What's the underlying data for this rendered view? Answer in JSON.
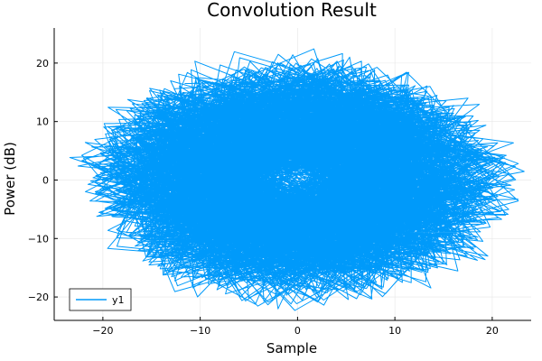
{
  "chart_data": {
    "type": "line",
    "title": "Convolution Result",
    "xlabel": "Sample",
    "ylabel": "Power (dB)",
    "xlim": [
      -25,
      24
    ],
    "ylim": [
      -24,
      26
    ],
    "xticks": [
      -20,
      -10,
      0,
      10,
      20
    ],
    "yticks": [
      -20,
      -10,
      0,
      10,
      20
    ],
    "grid": true,
    "legend": "bottom-left",
    "series": [
      {
        "name": "y1",
        "color": "#009AFA",
        "shape": "noisy elliptical cloud",
        "center": [
          0,
          0
        ],
        "extent_x": [
          -23,
          23
        ],
        "extent_y": [
          -22,
          24
        ]
      }
    ]
  }
}
